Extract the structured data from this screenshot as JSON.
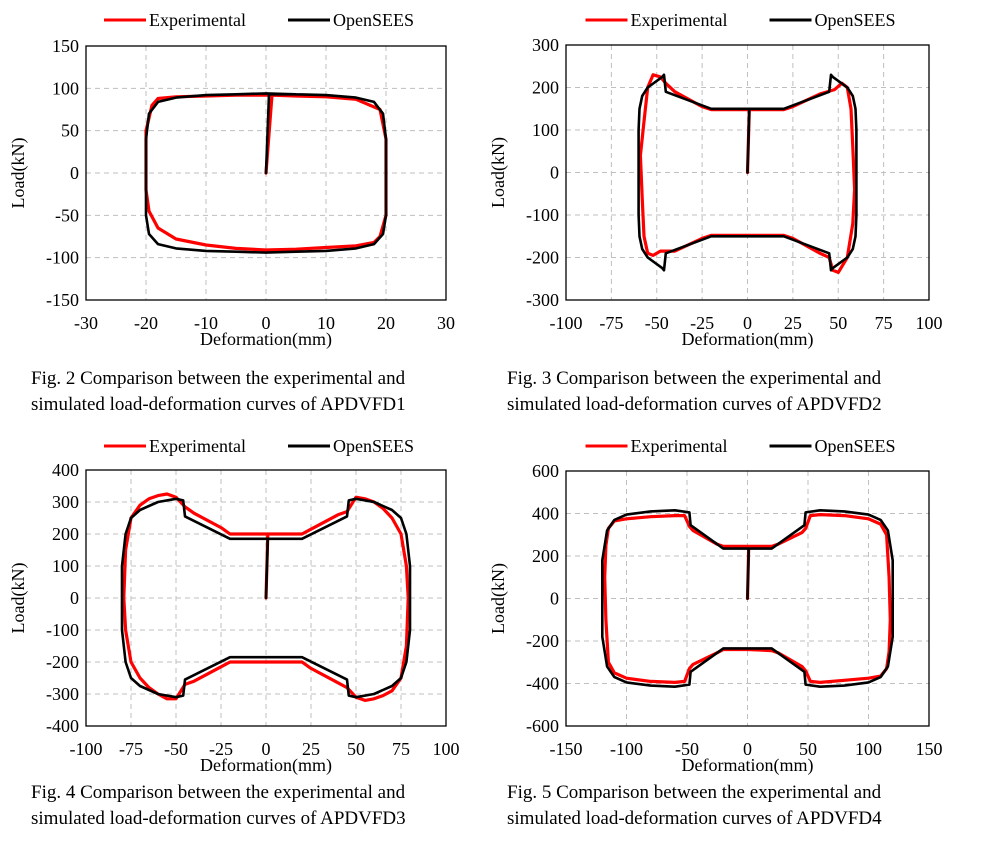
{
  "legend": {
    "experimental": "Experimental",
    "opensees": "OpenSEES"
  },
  "colors": {
    "experimental": "#ff0000",
    "opensees": "#000000",
    "grid": "#bfbfbf"
  },
  "figures": [
    {
      "caption_line1": "Fig. 2 Comparison between the experimental and",
      "caption_line2": "simulated load-deformation curves of APDVFD1"
    },
    {
      "caption_line1": "Fig. 3 Comparison between the experimental and",
      "caption_line2": "simulated load-deformation curves of APDVFD2"
    },
    {
      "caption_line1": "Fig. 4 Comparison between the experimental and",
      "caption_line2": "simulated load-deformation curves of APDVFD3"
    },
    {
      "caption_line1": "Fig. 5 Comparison between the experimental and",
      "caption_line2": "simulated load-deformation curves of APDVFD4"
    }
  ],
  "chart_data": [
    {
      "type": "line",
      "xlabel": "Deformation(mm)",
      "ylabel": "Load(kN)",
      "xlim": [
        -30,
        30
      ],
      "ylim": [
        -150,
        150
      ],
      "xticks": [
        -30,
        -20,
        -10,
        0,
        10,
        20,
        30
      ],
      "yticks": [
        -150,
        -100,
        -50,
        0,
        50,
        100,
        150
      ],
      "grid": true,
      "legend_position": "top",
      "series": [
        {
          "name": "Experimental",
          "x": [
            0,
            1,
            5,
            10,
            15,
            19,
            20,
            20,
            19,
            18,
            15,
            10,
            5,
            0,
            -5,
            -10,
            -15,
            -18,
            -19.5,
            -20,
            -20,
            -19,
            -18,
            -15,
            -10,
            -5,
            0,
            1
          ],
          "y": [
            0,
            92,
            91,
            90,
            87,
            75,
            40,
            -50,
            -75,
            -82,
            -86,
            -88,
            -90,
            -91,
            -89,
            -85,
            -78,
            -65,
            -45,
            -20,
            50,
            80,
            88,
            90,
            91,
            92,
            92,
            92
          ]
        },
        {
          "name": "OpenSEES",
          "x": [
            0,
            0.5,
            5,
            10,
            15,
            18,
            19.5,
            20,
            20,
            19.5,
            18,
            15,
            10,
            5,
            0,
            -5,
            -10,
            -15,
            -18,
            -19.5,
            -20,
            -20,
            -19.5,
            -18,
            -15,
            -10,
            -5,
            0,
            5
          ],
          "y": [
            0,
            93,
            93,
            92,
            89,
            84,
            70,
            40,
            -50,
            -72,
            -84,
            -89,
            -92,
            -93,
            -94,
            -93,
            -92,
            -89,
            -84,
            -72,
            -50,
            40,
            70,
            84,
            89,
            92,
            93,
            94,
            93
          ]
        }
      ]
    },
    {
      "type": "line",
      "xlabel": "Deformation(mm)",
      "ylabel": "Load(kN)",
      "xlim": [
        -100,
        100
      ],
      "ylim": [
        -300,
        300
      ],
      "xticks": [
        -100,
        -75,
        -50,
        -25,
        0,
        25,
        50,
        75,
        100
      ],
      "yticks": [
        -300,
        -200,
        -100,
        0,
        100,
        200,
        300
      ],
      "grid": true,
      "legend_position": "top",
      "series": [
        {
          "name": "Experimental",
          "x": [
            0,
            1,
            20,
            25,
            40,
            48,
            52,
            55,
            57,
            58,
            59,
            58,
            55,
            50,
            47,
            45,
            40,
            25,
            20,
            0,
            -20,
            -25,
            -40,
            -48,
            -52,
            -55,
            -57,
            -58,
            -59,
            -57,
            -55,
            -52,
            -48,
            -45,
            -40,
            -25,
            -20,
            0,
            1
          ],
          "y": [
            0,
            148,
            148,
            155,
            185,
            195,
            210,
            200,
            150,
            60,
            -40,
            -120,
            -200,
            -235,
            -230,
            -200,
            -190,
            -155,
            -148,
            -148,
            -148,
            -155,
            -185,
            -185,
            -195,
            -190,
            -150,
            -60,
            40,
            120,
            200,
            230,
            225,
            210,
            190,
            155,
            148,
            148,
            148
          ]
        },
        {
          "name": "OpenSEES",
          "x": [
            0,
            1,
            20,
            45,
            46,
            47,
            55,
            58,
            59.5,
            60,
            60,
            59.5,
            58,
            55,
            47,
            46,
            45,
            20,
            0,
            -20,
            -45,
            -46,
            -47,
            -55,
            -58,
            -59.5,
            -60,
            -60,
            -59.5,
            -58,
            -55,
            -47,
            -46,
            -45,
            -20,
            0,
            1
          ],
          "y": [
            0,
            150,
            150,
            190,
            230,
            225,
            200,
            180,
            150,
            100,
            -100,
            -150,
            -180,
            -200,
            -225,
            -230,
            -190,
            -150,
            -150,
            -150,
            -190,
            -230,
            -225,
            -200,
            -180,
            -150,
            -100,
            100,
            150,
            180,
            200,
            225,
            230,
            190,
            150,
            150,
            150
          ]
        }
      ]
    },
    {
      "type": "line",
      "xlabel": "Deformation(mm)",
      "ylabel": "Load(kN)",
      "xlim": [
        -100,
        100
      ],
      "ylim": [
        -400,
        400
      ],
      "xticks": [
        -100,
        -75,
        -50,
        -25,
        0,
        25,
        50,
        75,
        100
      ],
      "yticks": [
        -400,
        -300,
        -200,
        -100,
        0,
        100,
        200,
        300,
        400
      ],
      "grid": true,
      "legend_position": "top",
      "series": [
        {
          "name": "Experimental",
          "x": [
            0,
            1,
            20,
            25,
            40,
            45,
            50,
            55,
            60,
            65,
            70,
            75,
            78,
            79,
            78,
            75,
            70,
            65,
            60,
            55,
            50,
            45,
            40,
            25,
            20,
            0,
            -20,
            -25,
            -40,
            -45,
            -50,
            -55,
            -60,
            -65,
            -70,
            -75,
            -78,
            -79,
            -78,
            -75,
            -70,
            -65,
            -60,
            -55,
            -50,
            -45,
            -40,
            -25,
            -20,
            0,
            1
          ],
          "y": [
            0,
            200,
            200,
            215,
            260,
            270,
            315,
            310,
            300,
            280,
            250,
            200,
            100,
            0,
            -150,
            -250,
            -290,
            -305,
            -315,
            -320,
            -310,
            -280,
            -265,
            -220,
            -200,
            -200,
            -200,
            -215,
            -260,
            -270,
            -315,
            -315,
            -300,
            -280,
            -250,
            -200,
            -100,
            0,
            150,
            250,
            290,
            310,
            320,
            325,
            315,
            285,
            265,
            220,
            200,
            200,
            200
          ]
        },
        {
          "name": "OpenSEES",
          "x": [
            0,
            1,
            20,
            45,
            46,
            50,
            60,
            70,
            75,
            78,
            80,
            80,
            78,
            75,
            70,
            60,
            50,
            46,
            45,
            20,
            0,
            -20,
            -45,
            -46,
            -50,
            -60,
            -70,
            -75,
            -78,
            -80,
            -80,
            -78,
            -75,
            -70,
            -60,
            -50,
            -46,
            -45,
            -20,
            0,
            1
          ],
          "y": [
            0,
            185,
            185,
            255,
            305,
            310,
            300,
            275,
            250,
            200,
            100,
            -100,
            -200,
            -250,
            -275,
            -300,
            -310,
            -305,
            -255,
            -185,
            -185,
            -185,
            -255,
            -305,
            -310,
            -300,
            -275,
            -250,
            -200,
            -100,
            100,
            200,
            250,
            275,
            300,
            310,
            305,
            255,
            185,
            185,
            185
          ]
        }
      ]
    },
    {
      "type": "line",
      "xlabel": "Deformation(mm)",
      "ylabel": "Load(kN)",
      "xlim": [
        -150,
        150
      ],
      "ylim": [
        -600,
        600
      ],
      "xticks": [
        -150,
        -100,
        -50,
        0,
        50,
        100,
        150
      ],
      "yticks": [
        -600,
        -400,
        -200,
        0,
        200,
        400,
        600
      ],
      "grid": true,
      "legend_position": "top",
      "series": [
        {
          "name": "Experimental",
          "x": [
            0,
            1,
            20,
            25,
            45,
            48,
            52,
            60,
            80,
            100,
            110,
            115,
            117,
            118,
            117,
            115,
            110,
            100,
            80,
            60,
            52,
            48,
            45,
            25,
            20,
            0,
            -20,
            -25,
            -45,
            -48,
            -52,
            -60,
            -80,
            -100,
            -110,
            -115,
            -117,
            -118,
            -117,
            -115,
            -110,
            -100,
            -80,
            -60,
            -52,
            -48,
            -45,
            -25,
            -20,
            0,
            1
          ],
          "y": [
            0,
            245,
            245,
            255,
            310,
            330,
            390,
            395,
            390,
            375,
            350,
            300,
            100,
            -100,
            -250,
            -330,
            -365,
            -375,
            -385,
            -395,
            -390,
            -340,
            -320,
            -255,
            -245,
            -240,
            -240,
            -255,
            -310,
            -330,
            -390,
            -395,
            -390,
            -375,
            -350,
            -300,
            -100,
            100,
            250,
            330,
            365,
            375,
            385,
            390,
            390,
            340,
            320,
            255,
            245,
            245,
            245
          ]
        },
        {
          "name": "OpenSEES",
          "x": [
            0,
            1,
            20,
            47,
            48,
            60,
            80,
            100,
            110,
            116,
            120,
            120,
            116,
            110,
            100,
            80,
            60,
            48,
            47,
            20,
            0,
            -20,
            -47,
            -48,
            -60,
            -80,
            -100,
            -110,
            -116,
            -120,
            -120,
            -116,
            -110,
            -100,
            -80,
            -60,
            -48,
            -47,
            -20,
            0,
            1
          ],
          "y": [
            0,
            235,
            235,
            345,
            405,
            415,
            410,
            395,
            370,
            320,
            180,
            -180,
            -320,
            -370,
            -395,
            -410,
            -415,
            -405,
            -345,
            -235,
            -235,
            -235,
            -345,
            -405,
            -415,
            -410,
            -395,
            -370,
            -320,
            -180,
            180,
            320,
            370,
            395,
            410,
            415,
            405,
            345,
            235,
            235,
            235
          ]
        }
      ]
    }
  ]
}
